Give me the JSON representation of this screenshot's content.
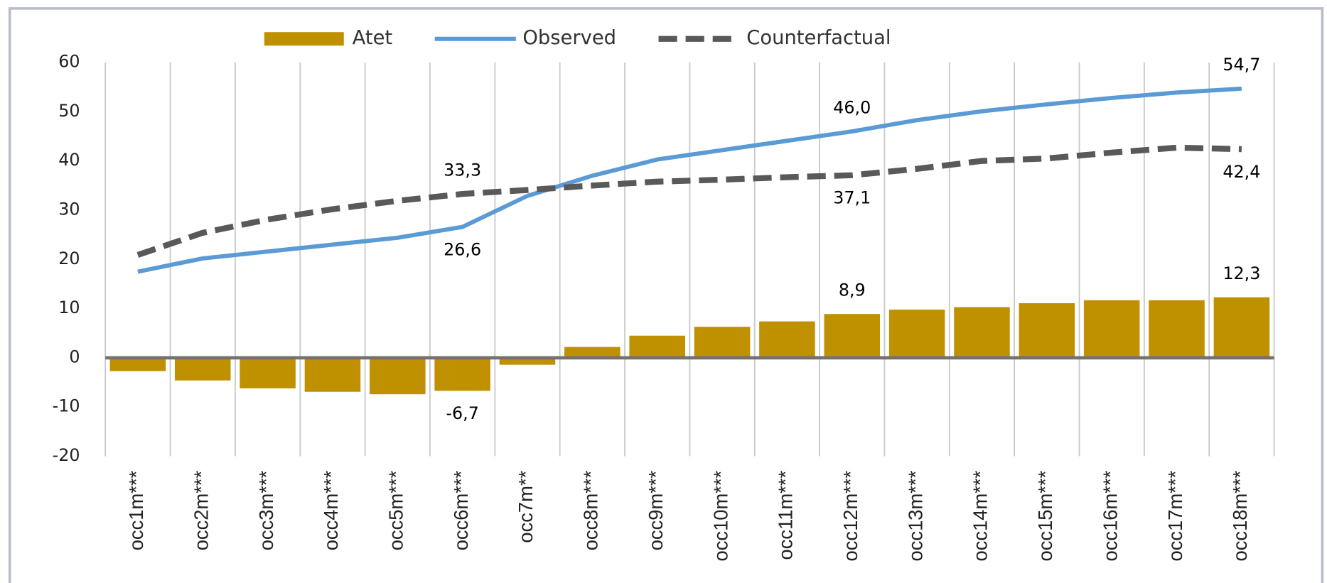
{
  "chart_data": {
    "type": "bar-line",
    "categories": [
      "occ1m***",
      "occ2m***",
      "occ3m***",
      "occ4m***",
      "occ5m***",
      "occ6m***",
      "occ7m**",
      "occ8m***",
      "occ9m***",
      "occ10m***",
      "occ11m***",
      "occ12m***",
      "occ13m***",
      "occ14m***",
      "occ15m***",
      "occ16m***",
      "occ17m***",
      "occ18m***"
    ],
    "series": [
      {
        "name": "Atet",
        "type": "bar",
        "color": "#bf9000",
        "values": [
          -2.7,
          -4.6,
          -6.2,
          -6.9,
          -7.4,
          -6.7,
          -1.4,
          2.2,
          4.5,
          6.3,
          7.4,
          8.9,
          9.8,
          10.3,
          11.1,
          11.7,
          11.7,
          12.3
        ],
        "value_labels": [
          null,
          null,
          null,
          null,
          null,
          "-6,7",
          null,
          null,
          null,
          null,
          null,
          "8,9",
          null,
          null,
          null,
          null,
          null,
          "12,3"
        ]
      },
      {
        "name": "Observed",
        "type": "line",
        "color": "#5b9bd5",
        "values": [
          17.5,
          20.2,
          21.6,
          23.0,
          24.4,
          26.6,
          32.9,
          37.0,
          40.3,
          42.2,
          44.1,
          46.0,
          48.3,
          50.1,
          51.5,
          52.8,
          53.9,
          54.7
        ],
        "value_labels": [
          null,
          null,
          null,
          null,
          null,
          "26,6",
          null,
          null,
          null,
          null,
          null,
          "46,0",
          null,
          null,
          null,
          null,
          null,
          "54,7"
        ]
      },
      {
        "name": "Counterfactual",
        "type": "line",
        "dashed": true,
        "color": "#595959",
        "values": [
          20.9,
          25.4,
          28.1,
          30.2,
          31.9,
          33.3,
          34.1,
          35.0,
          35.8,
          36.2,
          36.7,
          37.1,
          38.4,
          40.0,
          40.5,
          41.7,
          42.7,
          42.4
        ],
        "value_labels": [
          null,
          null,
          null,
          null,
          null,
          "33,3",
          null,
          null,
          null,
          null,
          null,
          "37,1",
          null,
          null,
          null,
          null,
          null,
          "42,4"
        ]
      }
    ],
    "ylim": [
      -20,
      60
    ],
    "yticks": [
      -20,
      -10,
      0,
      10,
      20,
      30,
      40,
      50,
      60
    ],
    "legend": "top",
    "grid": "vertical"
  }
}
